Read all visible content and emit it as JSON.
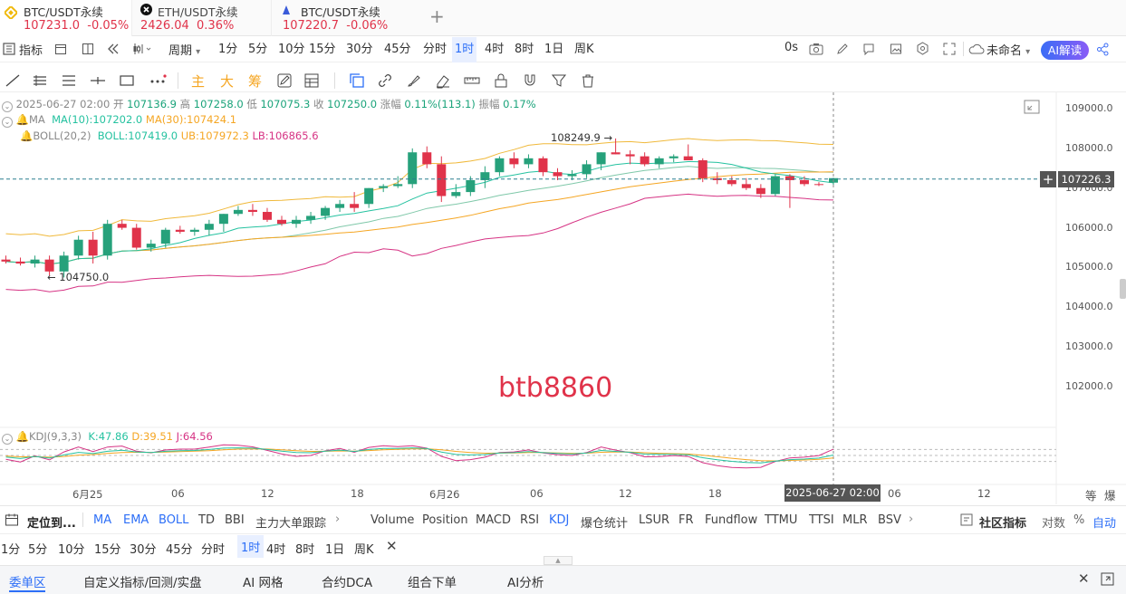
{
  "tabs": [
    {
      "symbol": "BTC/USDT永续",
      "price": "107231.0",
      "change": "-0.05%",
      "icon": "binance-logo-icon",
      "price_color": "red"
    },
    {
      "symbol": "ETH/USDT永续",
      "price": "2426.04",
      "change": "0.36%",
      "icon": "okx-logo-icon",
      "price_color": "red"
    },
    {
      "symbol": "BTC/USDT永续",
      "price": "107220.7",
      "change": "-0.06%",
      "icon": "exchange-logo-icon",
      "price_color": "red"
    }
  ],
  "toolbar": {
    "indicators_label": "指标",
    "period_label": "周期",
    "intervals": [
      "1分",
      "5分",
      "10分",
      "15分",
      "30分",
      "45分",
      "分时",
      "1时",
      "4时",
      "8时",
      "1日",
      "周K"
    ],
    "active_interval": "1时",
    "countdown": "0s",
    "layout_name": "未命名",
    "ai_button": "AI解读"
  },
  "drawing": {
    "main": "主",
    "big": "大",
    "chip": "筹"
  },
  "info": {
    "date": "2025-06-27 02:00",
    "open_label": "开",
    "open": "107136.9",
    "high_label": "高",
    "high": "107258.0",
    "low_label": "低",
    "low": "107075.3",
    "close_label": "收",
    "close": "107250.0",
    "chg_label": "涨幅",
    "chg": "0.11%(113.1)",
    "amp_label": "振幅",
    "amp": "0.17%",
    "ma_label": "MA",
    "ma10": "MA(10):107202.0",
    "ma30": "MA(30):107424.1",
    "boll_label": "BOLL(20,2)",
    "boll": "BOLL:107419.0",
    "ub": "UB:107972.3",
    "lb": "LB:106865.6"
  },
  "price_axis": [
    "109000.0",
    "108000.0",
    "107000.0",
    "106000.0",
    "105000.0",
    "104000.0",
    "103000.0",
    "102000.0"
  ],
  "current_price": "107226.3",
  "annotations": {
    "high_marker": "108249.9 →",
    "low_marker": "← 104750.0",
    "watermark": "btb8860"
  },
  "kdj": {
    "label": "KDJ(9,3,3)",
    "k": "K:47.86",
    "d": "D:39.51",
    "j": "J:64.56"
  },
  "time_axis": [
    "6月25",
    "06",
    "12",
    "18",
    "6月26",
    "06",
    "12",
    "18",
    "06",
    "12"
  ],
  "crosshair_time": "2025-06-27 02:00",
  "axis_buttons": [
    "等",
    "爆"
  ],
  "indicator_bar": {
    "position_label": "定位到...",
    "items": [
      "MA",
      "EMA",
      "BOLL",
      "TD",
      "BBI",
      "主力大单跟踪",
      "Volume",
      "Position",
      "MACD",
      "RSI",
      "KDJ",
      "爆仓统计",
      "LSUR",
      "FR",
      "Fundflow",
      "TTMU",
      "TTSI",
      "MLR",
      "BSV"
    ],
    "community": "社区指标",
    "log": "对数",
    "pct": "%",
    "auto": "自动"
  },
  "interval_bar": [
    "1分",
    "5分",
    "10分",
    "15分",
    "30分",
    "45分",
    "分时",
    "1时",
    "4时",
    "8时",
    "1日",
    "周K"
  ],
  "bottom_tabs": [
    "委单区",
    "自定义指标/回测/实盘",
    "AI 网格",
    "合约DCA",
    "组合下单",
    "AI分析"
  ],
  "colors": {
    "up": "#26a17b",
    "down": "#e0334a",
    "ma10": "#25c2a0",
    "ma30": "#f5a623",
    "boll": "#f0b93b",
    "lb": "#d63384",
    "accent": "#2d6ff7"
  },
  "chart_data": {
    "type": "candlestick",
    "interval": "1h",
    "candles": [
      {
        "o": 105200,
        "h": 105300,
        "l": 105100,
        "c": 105150
      },
      {
        "o": 105150,
        "h": 105250,
        "l": 105050,
        "c": 105100
      },
      {
        "o": 105100,
        "h": 105300,
        "l": 105000,
        "c": 105200
      },
      {
        "o": 105200,
        "h": 105300,
        "l": 104800,
        "c": 104900
      },
      {
        "o": 104900,
        "h": 105400,
        "l": 104750,
        "c": 105300
      },
      {
        "o": 105300,
        "h": 105800,
        "l": 105200,
        "c": 105700
      },
      {
        "o": 105700,
        "h": 105900,
        "l": 105100,
        "c": 105300
      },
      {
        "o": 105300,
        "h": 106200,
        "l": 105200,
        "c": 106100
      },
      {
        "o": 106100,
        "h": 106200,
        "l": 105950,
        "c": 106000
      },
      {
        "o": 106000,
        "h": 106100,
        "l": 105450,
        "c": 105500
      },
      {
        "o": 105500,
        "h": 105700,
        "l": 105400,
        "c": 105600
      },
      {
        "o": 105600,
        "h": 106000,
        "l": 105500,
        "c": 105950
      },
      {
        "o": 105950,
        "h": 106050,
        "l": 105850,
        "c": 105900
      },
      {
        "o": 105900,
        "h": 106000,
        "l": 105800,
        "c": 105950
      },
      {
        "o": 105950,
        "h": 106200,
        "l": 105800,
        "c": 106100
      },
      {
        "o": 106100,
        "h": 106350,
        "l": 105900,
        "c": 106350
      },
      {
        "o": 106350,
        "h": 106550,
        "l": 106300,
        "c": 106450
      },
      {
        "o": 106450,
        "h": 106600,
        "l": 106300,
        "c": 106400
      },
      {
        "o": 106400,
        "h": 106500,
        "l": 106150,
        "c": 106200
      },
      {
        "o": 106200,
        "h": 106300,
        "l": 106050,
        "c": 106100
      },
      {
        "o": 106100,
        "h": 106300,
        "l": 106000,
        "c": 106200
      },
      {
        "o": 106200,
        "h": 106400,
        "l": 106100,
        "c": 106300
      },
      {
        "o": 106300,
        "h": 106550,
        "l": 106200,
        "c": 106500
      },
      {
        "o": 106500,
        "h": 106700,
        "l": 106400,
        "c": 106600
      },
      {
        "o": 106600,
        "h": 106900,
        "l": 106400,
        "c": 106500
      },
      {
        "o": 106600,
        "h": 107000,
        "l": 106500,
        "c": 107000
      },
      {
        "o": 107000,
        "h": 107100,
        "l": 106900,
        "c": 107050
      },
      {
        "o": 107050,
        "h": 107300,
        "l": 107000,
        "c": 107100
      },
      {
        "o": 107100,
        "h": 108000,
        "l": 107000,
        "c": 107900
      },
      {
        "o": 107900,
        "h": 108050,
        "l": 107500,
        "c": 107600
      },
      {
        "o": 107600,
        "h": 107800,
        "l": 106650,
        "c": 106800
      },
      {
        "o": 106800,
        "h": 107100,
        "l": 106750,
        "c": 106900
      },
      {
        "o": 106900,
        "h": 107300,
        "l": 106800,
        "c": 107200
      },
      {
        "o": 107200,
        "h": 107550,
        "l": 107000,
        "c": 107400
      },
      {
        "o": 107400,
        "h": 107800,
        "l": 107300,
        "c": 107750
      },
      {
        "o": 107750,
        "h": 107900,
        "l": 107500,
        "c": 107600
      },
      {
        "o": 107600,
        "h": 107850,
        "l": 107500,
        "c": 107750
      },
      {
        "o": 107750,
        "h": 107800,
        "l": 107300,
        "c": 107400
      },
      {
        "o": 107400,
        "h": 107500,
        "l": 107200,
        "c": 107300
      },
      {
        "o": 107300,
        "h": 107450,
        "l": 107200,
        "c": 107350
      },
      {
        "o": 107350,
        "h": 107700,
        "l": 107250,
        "c": 107600
      },
      {
        "o": 107600,
        "h": 107900,
        "l": 107450,
        "c": 107900
      },
      {
        "o": 107900,
        "h": 108250,
        "l": 107850,
        "c": 107850
      },
      {
        "o": 107850,
        "h": 107950,
        "l": 107600,
        "c": 107800
      },
      {
        "o": 107800,
        "h": 107900,
        "l": 107550,
        "c": 107600
      },
      {
        "o": 107600,
        "h": 107800,
        "l": 107500,
        "c": 107750
      },
      {
        "o": 107750,
        "h": 107850,
        "l": 107650,
        "c": 107800
      },
      {
        "o": 107800,
        "h": 108100,
        "l": 107700,
        "c": 107700
      },
      {
        "o": 107700,
        "h": 107750,
        "l": 107150,
        "c": 107250
      },
      {
        "o": 107250,
        "h": 107400,
        "l": 107100,
        "c": 107200
      },
      {
        "o": 107200,
        "h": 107300,
        "l": 107050,
        "c": 107100
      },
      {
        "o": 107100,
        "h": 107250,
        "l": 106950,
        "c": 107000
      },
      {
        "o": 107000,
        "h": 107100,
        "l": 106750,
        "c": 106850
      },
      {
        "o": 106850,
        "h": 107350,
        "l": 106800,
        "c": 107300
      },
      {
        "o": 107300,
        "h": 107350,
        "l": 106500,
        "c": 107200
      },
      {
        "o": 107200,
        "h": 107300,
        "l": 107050,
        "c": 107100
      },
      {
        "o": 107100,
        "h": 107150,
        "l": 107050,
        "c": 107080
      },
      {
        "o": 107136.9,
        "h": 107258,
        "l": 107075.3,
        "c": 107250
      }
    ],
    "ylim": [
      101500,
      109300
    ]
  }
}
